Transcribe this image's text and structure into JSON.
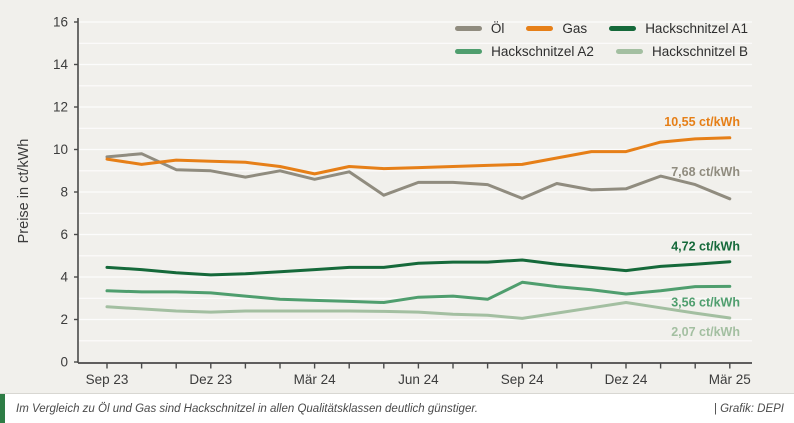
{
  "axis": {
    "ylabel": "Preise in ct/kWh",
    "y_ticks": [
      "0",
      "2",
      "4",
      "6",
      "8",
      "10",
      "12",
      "14",
      "16"
    ],
    "x_ticks": [
      "Sep 23",
      "Dez 23",
      "Mär 24",
      "Jun 24",
      "Sep 24",
      "Dez 24",
      "Mär 25"
    ]
  },
  "legend": {
    "rows": [
      [
        0,
        1,
        2
      ],
      [
        3,
        4
      ]
    ]
  },
  "chart_data": {
    "type": "line",
    "ylabel": "Preise in ct/kWh",
    "ylim": [
      0,
      16
    ],
    "y_tick_step": 2,
    "grid": "faint horizontal gridlines every 1 ct/kWh",
    "legend_position": "top-right",
    "x": [
      "Sep 23",
      "Okt 23",
      "Nov 23",
      "Dez 23",
      "Jan 24",
      "Feb 24",
      "Mär 24",
      "Apr 24",
      "Mai 24",
      "Jun 24",
      "Jul 24",
      "Aug 24",
      "Sep 24",
      "Okt 24",
      "Nov 24",
      "Dez 24",
      "Jan 25",
      "Feb 25",
      "Mär 25"
    ],
    "x_major_tick_labels": [
      "Sep 23",
      "Dez 23",
      "Mär 24",
      "Jun 24",
      "Sep 24",
      "Dez 24",
      "Mär 25"
    ],
    "series": [
      {
        "id": "oel",
        "name": "Öl",
        "color": "#908c7f",
        "end_label": "7,68 ct/kWh",
        "values": [
          9.65,
          9.8,
          9.05,
          9.0,
          8.7,
          9.0,
          8.6,
          8.95,
          7.85,
          8.45,
          8.45,
          8.35,
          7.7,
          8.4,
          8.1,
          8.15,
          8.75,
          8.35,
          7.68
        ]
      },
      {
        "id": "gas",
        "name": "Gas",
        "color": "#e67f17",
        "end_label": "10,55 ct/kWh",
        "values": [
          9.55,
          9.3,
          9.5,
          9.45,
          9.4,
          9.2,
          8.85,
          9.2,
          9.1,
          9.15,
          9.2,
          9.25,
          9.3,
          9.6,
          9.9,
          9.9,
          10.35,
          10.5,
          10.55
        ]
      },
      {
        "id": "hackschnitzel-a1",
        "name": "Hackschnitzel A1",
        "color": "#15693a",
        "end_label": "4,72 ct/kWh",
        "values": [
          4.45,
          4.35,
          4.2,
          4.1,
          4.15,
          4.25,
          4.35,
          4.45,
          4.45,
          4.65,
          4.7,
          4.7,
          4.8,
          4.6,
          4.45,
          4.3,
          4.5,
          4.6,
          4.72
        ]
      },
      {
        "id": "hackschnitzel-a2",
        "name": "Hackschnitzel A2",
        "color": "#4f9e6e",
        "end_label": "3,56 ct/kWh",
        "values": [
          3.35,
          3.3,
          3.3,
          3.25,
          3.1,
          2.95,
          2.9,
          2.85,
          2.8,
          3.05,
          3.1,
          2.95,
          3.75,
          3.55,
          3.4,
          3.2,
          3.35,
          3.55,
          3.56
        ]
      },
      {
        "id": "hackschnitzel-b",
        "name": "Hackschnitzel B",
        "color": "#a3bfa1",
        "end_label": "2,07 ct/kWh",
        "values": [
          2.6,
          2.5,
          2.4,
          2.35,
          2.4,
          2.4,
          2.4,
          2.4,
          2.38,
          2.35,
          2.25,
          2.2,
          2.05,
          2.3,
          2.55,
          2.8,
          2.55,
          2.3,
          2.07
        ]
      }
    ]
  },
  "caption": {
    "text": "Im Vergleich zu Öl und Gas sind Hackschnitzel in allen Qualitätsklassen deutlich günstiger.",
    "credit": "| Grafik: DEPI"
  },
  "colors": {
    "background": "#f1f0ec",
    "gridline": "#ffffff",
    "axis": "#4a4a4a",
    "tick_text": "#3c3c3c",
    "caption_background": "#ffffff",
    "caption_accent": "#2e7d46"
  }
}
